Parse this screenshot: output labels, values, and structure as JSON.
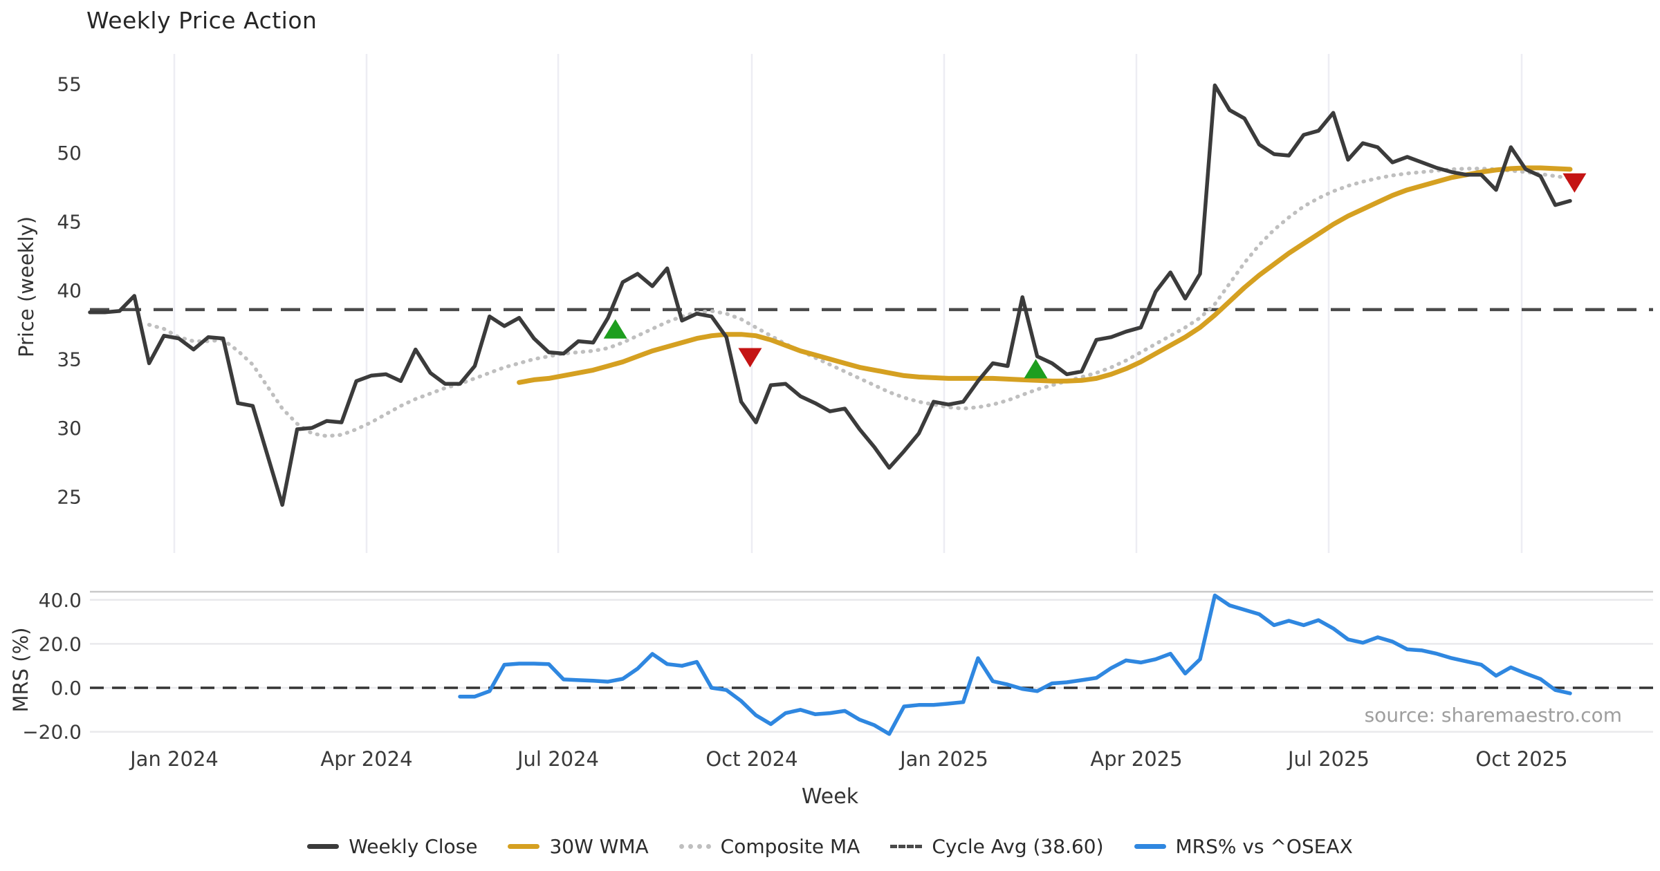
{
  "title": "Weekly Price Action",
  "source_note": "source: sharemaestro.com",
  "colors": {
    "background": "#ffffff",
    "close_line": "#3b3b3b",
    "wma_line": "#d5a021",
    "composite_line": "#bfbfbf",
    "cycle_line": "#4a4a4a",
    "mrs_line": "#2f87e0",
    "buy_marker": "#1e9e1f",
    "sell_marker": "#c41414",
    "price_grid": "#ededf3",
    "mrs_grid": "#e9e9ec",
    "panel_border": "#c9c9c9",
    "tick_text": "#3a3a3a",
    "source_text": "#9e9e9e"
  },
  "chart_data": {
    "type": "line",
    "title": "Weekly Price Action",
    "xlabel": "Week",
    "x_start_date": "2023-11-27",
    "x_frequency": "weekly",
    "x_tick_labels": [
      "Jan 2024",
      "Apr 2024",
      "Jul 2024",
      "Oct 2024",
      "Jan 2025",
      "Apr 2025",
      "Jul 2025",
      "Oct 2025"
    ],
    "panels": [
      {
        "name": "price",
        "ylabel": "Price (weekly)",
        "ytick_labels": [
          "55",
          "50",
          "45",
          "40",
          "35",
          "30",
          "25"
        ],
        "yticks": [
          55,
          50,
          45,
          40,
          35,
          30,
          25
        ],
        "ylim": [
          22.5,
          57.5
        ],
        "grid": "vertical"
      },
      {
        "name": "mrs",
        "ylabel": "MRS (%)",
        "ytick_labels": [
          "40.0",
          "20.0",
          "0.0",
          "−20.0"
        ],
        "yticks": [
          40,
          20,
          0,
          -20
        ],
        "ylim": [
          -26,
          46
        ],
        "grid": "horizontal",
        "zero_line": 0
      }
    ],
    "cycle_avg": 38.6,
    "series": [
      {
        "name": "Weekly Close",
        "panel": "price",
        "style": "solid",
        "color": "#3b3b3b",
        "start_index": 0,
        "values": [
          38.4,
          38.4,
          38.5,
          39.6,
          34.7,
          36.7,
          36.5,
          35.7,
          36.6,
          36.5,
          31.8,
          31.6,
          28.0,
          24.4,
          29.9,
          30.0,
          30.5,
          30.4,
          33.4,
          33.8,
          33.9,
          33.4,
          35.7,
          34.0,
          33.2,
          33.2,
          34.5,
          38.1,
          37.4,
          38.0,
          36.5,
          35.5,
          35.4,
          36.3,
          36.2,
          38.0,
          40.6,
          41.2,
          40.3,
          41.6,
          37.8,
          38.3,
          38.1,
          36.6,
          31.9,
          30.4,
          33.1,
          33.2,
          32.3,
          31.8,
          31.2,
          31.4,
          29.9,
          28.6,
          27.1,
          28.3,
          29.6,
          31.9,
          31.7,
          31.9,
          33.4,
          34.7,
          34.5,
          39.5,
          35.2,
          34.7,
          33.9,
          34.1,
          36.4,
          36.6,
          37.0,
          37.3,
          39.9,
          41.3,
          39.4,
          41.2,
          54.9,
          53.1,
          52.5,
          50.6,
          49.9,
          49.8,
          51.3,
          51.6,
          52.9,
          49.5,
          50.7,
          50.4,
          49.3,
          49.7,
          49.3,
          48.9,
          48.6,
          48.4,
          48.4,
          47.3,
          50.4,
          48.8,
          48.3,
          46.2,
          46.5
        ]
      },
      {
        "name": "30W WMA",
        "panel": "price",
        "style": "solid",
        "color": "#d5a021",
        "start_index": 29,
        "values": [
          33.3,
          33.5,
          33.6,
          33.8,
          34.0,
          34.2,
          34.5,
          34.8,
          35.2,
          35.6,
          35.9,
          36.2,
          36.5,
          36.7,
          36.8,
          36.8,
          36.7,
          36.4,
          36.0,
          35.6,
          35.3,
          35.0,
          34.7,
          34.4,
          34.2,
          34.0,
          33.8,
          33.7,
          33.65,
          33.6,
          33.6,
          33.6,
          33.6,
          33.55,
          33.5,
          33.45,
          33.4,
          33.4,
          33.45,
          33.6,
          33.9,
          34.3,
          34.8,
          35.4,
          36.0,
          36.6,
          37.3,
          38.2,
          39.2,
          40.2,
          41.1,
          41.9,
          42.7,
          43.4,
          44.1,
          44.8,
          45.4,
          45.9,
          46.4,
          46.9,
          47.3,
          47.6,
          47.9,
          48.2,
          48.4,
          48.6,
          48.75,
          48.85,
          48.9,
          48.9,
          48.85,
          48.8
        ]
      },
      {
        "name": "Composite MA",
        "panel": "price",
        "style": "dotted",
        "color": "#bfbfbf",
        "start_index": 4,
        "values": [
          37.5,
          37.2,
          36.6,
          36.3,
          36.3,
          36.4,
          35.6,
          34.6,
          33.0,
          31.4,
          30.3,
          29.6,
          29.4,
          29.5,
          29.9,
          30.4,
          31.0,
          31.6,
          32.1,
          32.5,
          32.9,
          33.2,
          33.6,
          34.0,
          34.4,
          34.7,
          35.0,
          35.2,
          35.4,
          35.5,
          35.6,
          35.8,
          36.2,
          36.7,
          37.2,
          37.7,
          38.1,
          38.4,
          38.5,
          38.3,
          37.9,
          37.3,
          36.7,
          36.1,
          35.6,
          35.1,
          34.6,
          34.1,
          33.6,
          33.1,
          32.6,
          32.2,
          31.9,
          31.7,
          31.5,
          31.4,
          31.5,
          31.7,
          32.0,
          32.4,
          32.8,
          33.1,
          33.4,
          33.7,
          34.0,
          34.4,
          34.9,
          35.5,
          36.1,
          36.7,
          37.3,
          38.0,
          39.0,
          40.5,
          42.0,
          43.3,
          44.4,
          45.3,
          46.1,
          46.7,
          47.2,
          47.6,
          47.9,
          48.15,
          48.35,
          48.5,
          48.6,
          48.7,
          48.8,
          48.85,
          48.85,
          48.8,
          48.7,
          48.6,
          48.45,
          48.3,
          48.15
        ]
      },
      {
        "name": "Cycle Avg (38.60)",
        "panel": "price",
        "style": "dashed",
        "color": "#4a4a4a",
        "constant": 38.6
      },
      {
        "name": "MRS% vs ^OSEAX",
        "panel": "mrs",
        "style": "solid",
        "color": "#2f87e0",
        "start_index": 25,
        "values": [
          -4.0,
          -4.0,
          -1.5,
          10.5,
          11.0,
          11.0,
          10.8,
          3.8,
          3.5,
          3.2,
          2.8,
          4.1,
          8.7,
          15.4,
          10.8,
          10.0,
          11.8,
          0.0,
          -1.0,
          -6.0,
          -12.5,
          -16.5,
          -11.5,
          -10.0,
          -12.0,
          -11.5,
          -10.5,
          -14.5,
          -17.0,
          -21.0,
          -8.5,
          -7.8,
          -7.8,
          -7.2,
          -6.5,
          13.5,
          3.0,
          1.5,
          -0.5,
          -1.5,
          2.0,
          2.5,
          3.5,
          4.5,
          9.0,
          12.5,
          11.5,
          13.0,
          15.5,
          6.5,
          13.0,
          42.0,
          37.5,
          35.5,
          33.5,
          28.5,
          30.5,
          28.5,
          30.8,
          27.0,
          22.0,
          20.5,
          23.0,
          21.0,
          17.5,
          17.0,
          15.5,
          13.5,
          12.0,
          10.5,
          5.5,
          9.3,
          6.5,
          4.0,
          -1.0,
          -2.5
        ]
      }
    ],
    "markers": [
      {
        "kind": "buy",
        "shape": "triangle-up",
        "x_index": 35.5,
        "value": 37.2
      },
      {
        "kind": "sell",
        "shape": "triangle-down",
        "x_index": 44.6,
        "value": 35.1
      },
      {
        "kind": "buy",
        "shape": "triangle-up",
        "x_index": 63.9,
        "value": 34.3
      },
      {
        "kind": "sell",
        "shape": "triangle-down",
        "x_index": 100.3,
        "value": 47.8
      }
    ],
    "legend": [
      {
        "label": "Weekly Close",
        "style": "solid",
        "color": "#3b3b3b"
      },
      {
        "label": "30W WMA",
        "style": "solid",
        "color": "#d5a021"
      },
      {
        "label": "Composite MA",
        "style": "dotted",
        "color": "#bfbfbf"
      },
      {
        "label": "Cycle Avg (38.60)",
        "style": "dashed",
        "color": "#4a4a4a"
      },
      {
        "label": "MRS% vs ^OSEAX",
        "style": "solid",
        "color": "#2f87e0"
      }
    ],
    "legend_position": "bottom-center"
  }
}
